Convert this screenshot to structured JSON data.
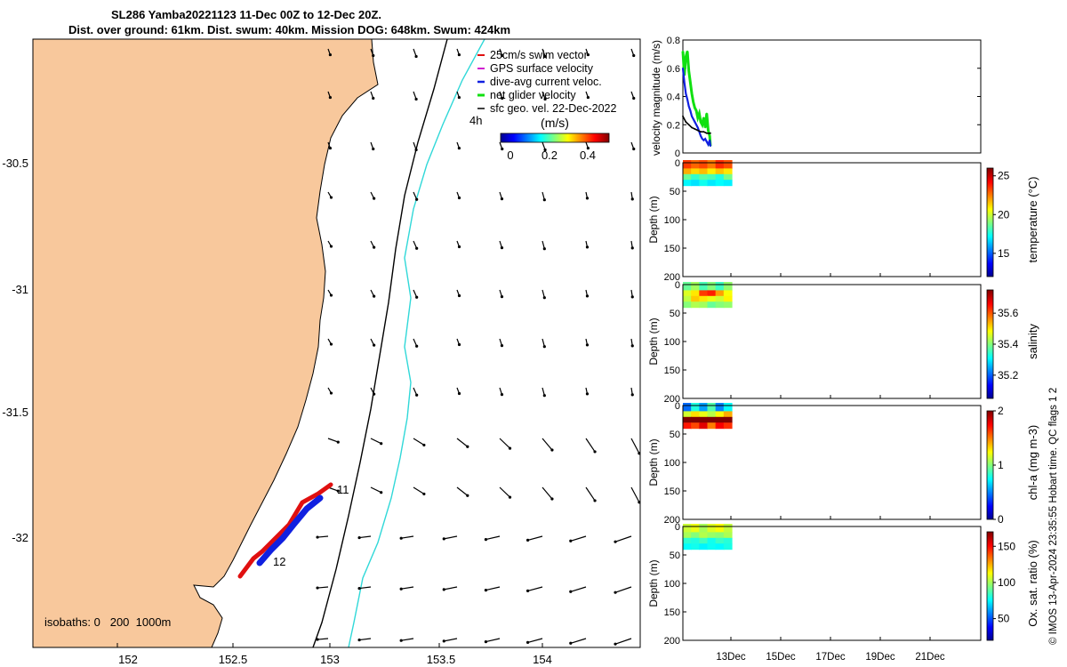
{
  "header": {
    "title_line1": "SL286 Yamba20221123 11-Dec 00Z to 12-Dec 20Z.",
    "title_line2": "Dist. over ground: 61km. Dist. swum: 40km. Mission DOG: 648km. Swum: 424km"
  },
  "map": {
    "lon_ticks": [
      "152",
      "152.5",
      "153",
      "153.5",
      "154"
    ],
    "lat_ticks": [
      "-30.5",
      "-31",
      "-31.5",
      "-32"
    ],
    "isobath_label": "isobaths: 0   200  1000m",
    "time_markers": [
      "4h",
      "11",
      "12"
    ],
    "legend": [
      {
        "label": "25cm/s swim vector",
        "color": "#e01010"
      },
      {
        "label": "GPS surface velocity",
        "color": "#d020d0"
      },
      {
        "label": "dive-avg current veloc.",
        "color": "#1020e0"
      },
      {
        "label": "net glider velocity",
        "color": "#10e010"
      },
      {
        "label": "sfc geo. vel. 22-Dec-2022",
        "color": "#000000"
      }
    ],
    "colorbar": {
      "title": "(m/s)",
      "ticks": [
        "0",
        "0.2",
        "0.4"
      ],
      "range": [
        -0.03,
        0.5
      ]
    },
    "colors": {
      "land": "#f8c89c",
      "isobath_200": "#000000",
      "isobath_1000": "#30d8d8"
    }
  },
  "chart_data": [
    {
      "type": "line",
      "title": "velocity magnitude",
      "ylabel": "velocity magnitude (m/s)",
      "ylim": [
        0,
        0.8
      ],
      "y_ticks": [
        "0",
        "0.2",
        "0.4",
        "0.6",
        "0.8"
      ],
      "series": [
        {
          "name": "net glider velocity",
          "color": "#10e010",
          "x": [
            0.0,
            0.1,
            0.2,
            0.3,
            0.4,
            0.5,
            0.6,
            0.7,
            0.8,
            0.9,
            1.0,
            1.1,
            1.2,
            1.3,
            1.4,
            1.5,
            1.6,
            1.7,
            1.8,
            1.85
          ],
          "values": [
            0.72,
            0.55,
            0.68,
            0.72,
            0.58,
            0.5,
            0.42,
            0.36,
            0.32,
            0.3,
            0.25,
            0.28,
            0.22,
            0.2,
            0.25,
            0.18,
            0.28,
            0.16,
            0.12,
            0.05
          ]
        },
        {
          "name": "dive-avg current veloc.",
          "color": "#1020e0",
          "x": [
            0.0,
            0.1,
            0.2,
            0.3,
            0.4,
            0.5,
            0.6,
            0.7,
            0.8,
            0.9,
            1.0,
            1.1,
            1.2,
            1.3,
            1.4,
            1.5,
            1.6,
            1.7,
            1.8,
            1.85
          ],
          "values": [
            0.6,
            0.5,
            0.42,
            0.38,
            0.33,
            0.3,
            0.26,
            0.24,
            0.22,
            0.2,
            0.18,
            0.15,
            0.12,
            0.1,
            0.09,
            0.1,
            0.08,
            0.06,
            0.09,
            0.05
          ]
        },
        {
          "name": "sfc geo. vel. 22-Dec-2022",
          "color": "#000000",
          "x": [
            0.0,
            0.2,
            0.4,
            0.6,
            0.8,
            1.0,
            1.2,
            1.4,
            1.6,
            1.85
          ],
          "values": [
            0.26,
            0.22,
            0.2,
            0.18,
            0.17,
            0.16,
            0.15,
            0.15,
            0.14,
            0.14
          ]
        }
      ]
    },
    {
      "type": "heatmap",
      "variable": "temperature",
      "colorbar_label": "temperature (°C)",
      "ylabel": "Depth (m)",
      "ylim": [
        0,
        200
      ],
      "y_ticks": [
        "0",
        "50",
        "100",
        "150",
        "200"
      ],
      "cbar_range": [
        12,
        26
      ],
      "cbar_ticks": [
        "15",
        "20",
        "25"
      ],
      "rows": [
        [
          23.4,
          22.8,
          23.2,
          22.5,
          23.6,
          23.1
        ],
        [
          21.8,
          21.2,
          21.6,
          20.9,
          21.5,
          21.0
        ],
        [
          18.6,
          17.9,
          18.4,
          18.2,
          17.6,
          18.8
        ],
        [
          17.1,
          16.8,
          17.4,
          16.9,
          17.2,
          17.0
        ]
      ]
    },
    {
      "type": "heatmap",
      "variable": "salinity",
      "colorbar_label": "salinity",
      "ylabel": "Depth (m)",
      "ylim": [
        0,
        200
      ],
      "y_ticks": [
        "0",
        "50",
        "100",
        "150",
        "200"
      ],
      "cbar_range": [
        35.05,
        35.75
      ],
      "cbar_ticks": [
        "35.2",
        "35.4",
        "35.6"
      ],
      "rows": [
        [
          35.38,
          35.42,
          35.36,
          35.4,
          35.35,
          35.41
        ],
        [
          35.46,
          35.5,
          35.62,
          35.64,
          35.55,
          35.48
        ],
        [
          35.44,
          35.52,
          35.5,
          35.47,
          35.45,
          35.49
        ],
        [
          35.4,
          35.43,
          35.42,
          35.38,
          35.4,
          35.41
        ]
      ]
    },
    {
      "type": "heatmap",
      "variable": "chl-a",
      "colorbar_label": "chl-a (mg m-3)",
      "ylabel": "Depth (m)",
      "ylim": [
        0,
        200
      ],
      "y_ticks": [
        "0",
        "50",
        "100",
        "150",
        "200"
      ],
      "cbar_range": [
        0,
        2
      ],
      "cbar_ticks": [
        "0",
        "1",
        "2"
      ],
      "rows": [
        [
          0.45,
          0.8,
          0.55,
          0.9,
          0.5,
          0.75
        ],
        [
          1.15,
          1.3,
          1.2,
          1.1,
          1.25,
          1.4
        ],
        [
          2.0,
          2.0,
          2.0,
          2.0,
          2.0,
          2.0
        ],
        [
          1.7,
          1.6,
          1.8,
          1.5,
          1.75,
          1.65
        ]
      ]
    },
    {
      "type": "heatmap",
      "variable": "Ox. sat. ratio",
      "colorbar_label": "Ox. sat. ratio (%)",
      "ylabel": "Depth (m)",
      "ylim": [
        0,
        200
      ],
      "y_ticks": [
        "0",
        "50",
        "100",
        "150",
        "200"
      ],
      "cbar_range": [
        20,
        170
      ],
      "cbar_ticks": [
        "50",
        "100",
        "150"
      ],
      "rows": [
        [
          105,
          110,
          100,
          108,
          112,
          104
        ],
        [
          100,
          95,
          102,
          98,
          96,
          101
        ],
        [
          82,
          80,
          85,
          78,
          84,
          81
        ],
        [
          76,
          78,
          74,
          77,
          75,
          79
        ]
      ]
    }
  ],
  "time_axis": {
    "ticks": [
      "13Dec",
      "15Dec",
      "17Dec",
      "19Dec",
      "21Dec"
    ]
  },
  "footer": {
    "copyright": "© IMOS 13-Apr-2024 23:35:55 Hobart time. QC flags 1  2"
  }
}
